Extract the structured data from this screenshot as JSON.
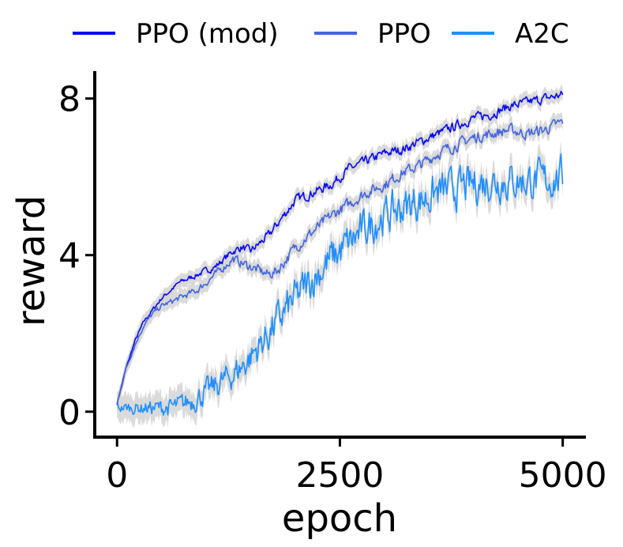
{
  "chart_data": {
    "type": "line",
    "title": "",
    "xlabel": "epoch",
    "ylabel": "reward",
    "xlim": [
      -250,
      5260
    ],
    "ylim": [
      -0.65,
      8.7
    ],
    "x_ticks": [
      0,
      2500,
      5000
    ],
    "x_tick_labels": [
      "0",
      "2500",
      "5000"
    ],
    "y_ticks": [
      0,
      4,
      8
    ],
    "y_tick_labels": [
      "0",
      "4",
      "8"
    ],
    "grid": false,
    "legend": "top, horizontal, above plot",
    "band_color": "#d3d3d3",
    "series": [
      {
        "name": "PPO (mod)",
        "color": "#0a0af0",
        "x": [
          0,
          100,
          200,
          300,
          400,
          500,
          600,
          700,
          800,
          900,
          1000,
          1100,
          1200,
          1300,
          1400,
          1500,
          1600,
          1700,
          1800,
          1900,
          2000,
          2200,
          2400,
          2600,
          2800,
          3000,
          3200,
          3400,
          3600,
          3800,
          4000,
          4200,
          4400,
          4600,
          4800,
          5000
        ],
        "y": [
          0.2,
          1.1,
          1.8,
          2.3,
          2.6,
          2.9,
          3.1,
          3.3,
          3.4,
          3.5,
          3.6,
          3.7,
          3.9,
          4.1,
          4.2,
          4.1,
          4.3,
          4.5,
          4.8,
          5.1,
          5.4,
          5.6,
          5.8,
          6.2,
          6.4,
          6.6,
          6.7,
          6.9,
          7.1,
          7.3,
          7.5,
          7.6,
          7.8,
          7.9,
          8.0,
          8.1
        ],
        "noise": 0.1
      },
      {
        "name": "PPO",
        "color": "#4565e0",
        "x": [
          0,
          100,
          200,
          300,
          400,
          500,
          600,
          700,
          800,
          900,
          1000,
          1100,
          1200,
          1300,
          1400,
          1500,
          1600,
          1700,
          1800,
          1900,
          2000,
          2200,
          2400,
          2600,
          2800,
          3000,
          3200,
          3400,
          3600,
          3800,
          4000,
          4200,
          4400,
          4600,
          4800,
          5000
        ],
        "y": [
          0.2,
          1.1,
          1.7,
          2.2,
          2.5,
          2.7,
          2.8,
          2.9,
          3.0,
          3.1,
          3.3,
          3.5,
          3.7,
          3.9,
          3.8,
          3.7,
          3.6,
          3.5,
          3.6,
          3.9,
          4.2,
          4.6,
          5.0,
          5.3,
          5.6,
          5.8,
          6.1,
          6.3,
          6.6,
          6.8,
          7.0,
          7.1,
          7.2,
          7.1,
          7.2,
          7.4
        ],
        "noise": 0.12
      },
      {
        "name": "A2C",
        "color": "#1e8fff",
        "x": [
          0,
          100,
          200,
          300,
          400,
          500,
          600,
          700,
          800,
          900,
          1000,
          1100,
          1200,
          1300,
          1400,
          1500,
          1600,
          1700,
          1800,
          1900,
          2000,
          2200,
          2400,
          2600,
          2800,
          3000,
          3200,
          3400,
          3600,
          3800,
          4000,
          4200,
          4400,
          4600,
          4800,
          5000
        ],
        "y": [
          0.1,
          0.1,
          0.1,
          0.1,
          0.1,
          0.1,
          0.1,
          0.15,
          0.25,
          0.35,
          0.5,
          0.65,
          0.8,
          0.95,
          1.15,
          1.4,
          1.7,
          2.0,
          2.3,
          2.6,
          2.9,
          3.4,
          3.9,
          4.3,
          4.7,
          5.0,
          5.2,
          5.4,
          5.6,
          5.7,
          5.8,
          5.9,
          5.9,
          5.9,
          5.9,
          6.0
        ],
        "noise": 0.4
      }
    ]
  }
}
